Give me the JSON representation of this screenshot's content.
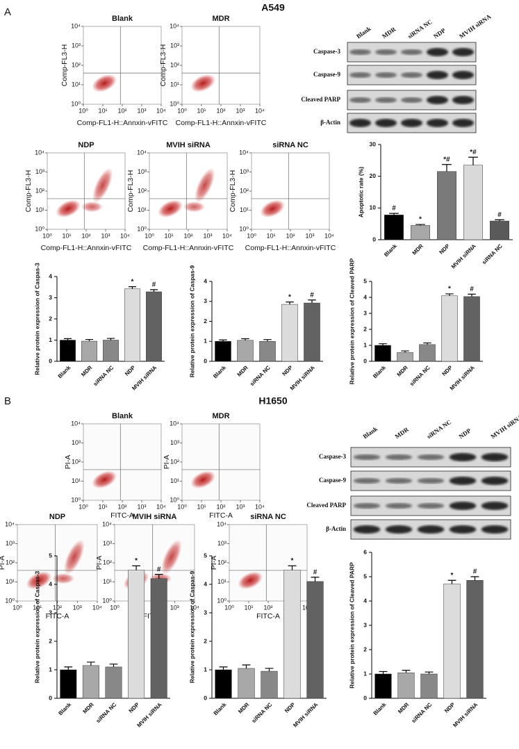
{
  "panels": [
    {
      "label": "A",
      "title": "A549",
      "flow_axes": {
        "xlim": [
          1,
          10000
        ],
        "ylim": [
          1,
          10000
        ],
        "log": true,
        "ticks": [
          {
            "value": 1,
            "label": "10⁰"
          },
          {
            "value": 10,
            "label": "10¹"
          },
          {
            "value": 100,
            "label": "10²"
          },
          {
            "value": 1000,
            "label": "10³"
          },
          {
            "value": 10000,
            "label": "10⁴"
          }
        ]
      },
      "flow": [
        {
          "title": "Blank",
          "xlabel": "Comp-FL1-H::Annxin-vFITC",
          "ylabel": "Comp-FL3-H"
        },
        {
          "title": "MDR",
          "xlabel": "Comp-FL1-H::Annxin-vFITC",
          "ylabel": "Comp-FL3-H"
        },
        {
          "title": "NDP",
          "xlabel": "Comp-FL1-H::Annxin-vFITC",
          "ylabel": "Comp-FL3-H"
        },
        {
          "title": "MVIH siRNA",
          "xlabel": "Comp-FL1-H::Annxin-vFITC",
          "ylabel": "Comp-FL3-H"
        },
        {
          "title": "siRNA NC",
          "xlabel": "Comp-FL1-H::Annxin-vFITC",
          "ylabel": "Comp-FL3-H"
        }
      ],
      "blot": {
        "lanes": [
          "Blank",
          "MDR",
          "siRNA NC",
          "NDP",
          "MVIH siRNA"
        ],
        "rows": [
          "Caspase-3",
          "Caspase-9",
          "Cleaved PARP",
          "β-Actin"
        ]
      }
    },
    {
      "label": "B",
      "title": "H1650",
      "flow_axes": {
        "xlim": [
          1,
          10000
        ],
        "ylim": [
          1,
          10000
        ],
        "log": true,
        "ticks": [
          {
            "value": 1,
            "label": "10⁰"
          },
          {
            "value": 10,
            "label": "10¹"
          },
          {
            "value": 100,
            "label": "10²"
          },
          {
            "value": 1000,
            "label": "10³"
          },
          {
            "value": 10000,
            "label": "10⁴"
          }
        ]
      },
      "flow": [
        {
          "title": "Blank",
          "xlabel": "FITC-A",
          "ylabel": "PI-A"
        },
        {
          "title": "MDR",
          "xlabel": "FITC-A",
          "ylabel": "PI-A"
        },
        {
          "title": "NDP",
          "xlabel": "FITC-A",
          "ylabel": "PI-A"
        },
        {
          "title": "MVIH siRNA",
          "xlabel": "FITC-A",
          "ylabel": "PI-A"
        },
        {
          "title": "siRNA NC",
          "xlabel": "FITC-A",
          "ylabel": "PI-A"
        }
      ],
      "blot": {
        "lanes": [
          "Blank",
          "MDR",
          "siRNA NC",
          "NDP",
          "MVIH siRNA"
        ],
        "rows": [
          "Caspase-3",
          "Caspase-9",
          "Cleaved PARP",
          "β-Actin"
        ]
      }
    }
  ],
  "chart_data": [
    {
      "type": "bar",
      "ylabel": "Apoptotic rate (%)",
      "categories": [
        "Blank",
        "MDR",
        "NDP",
        "MVIH siRNA",
        "siRNA NC"
      ],
      "values": [
        7.8,
        4.5,
        21.5,
        23.5,
        5.9
      ],
      "errors": [
        0.5,
        0.3,
        2.2,
        2.5,
        0.4
      ],
      "annotations": [
        "#",
        "*",
        "*#",
        "*#",
        "#"
      ],
      "colors": [
        "#000000",
        "#a8a8a8",
        "#7a7a7a",
        "#d9d9d9",
        "#5a5a5a"
      ],
      "ylim": [
        0,
        30
      ],
      "yticks": [
        0,
        10,
        20,
        30
      ]
    },
    {
      "type": "bar",
      "ylabel": "Relative protein expression of Caspas-3",
      "categories": [
        "Blank",
        "MDR",
        "siRNA NC",
        "NDP",
        "MVIH siRNA"
      ],
      "values": [
        1.0,
        0.95,
        1.0,
        3.42,
        3.28
      ],
      "errors": [
        0.07,
        0.08,
        0.08,
        0.1,
        0.1
      ],
      "annotations": [
        null,
        null,
        null,
        "*",
        "#"
      ],
      "colors": [
        "#000000",
        "#a8a8a8",
        "#888888",
        "#dcdcdc",
        "#626262"
      ],
      "ylim": [
        0,
        4
      ],
      "yticks": [
        0,
        1,
        2,
        3,
        4
      ]
    },
    {
      "type": "bar",
      "ylabel": "Relative protein expression of Caspas-9",
      "categories": [
        "Blank",
        "MDR",
        "siRNA NC",
        "NDP",
        "MVIH siRNA"
      ],
      "values": [
        1.0,
        1.05,
        1.0,
        2.85,
        2.92
      ],
      "errors": [
        0.07,
        0.08,
        0.09,
        0.12,
        0.15
      ],
      "annotations": [
        null,
        null,
        null,
        "*",
        "#"
      ],
      "colors": [
        "#000000",
        "#a8a8a8",
        "#888888",
        "#dcdcdc",
        "#626262"
      ],
      "ylim": [
        0,
        4
      ],
      "yticks": [
        0,
        1,
        2,
        3,
        4
      ]
    },
    {
      "type": "bar",
      "ylabel": "Relative protein expression of Cleaved PARP",
      "categories": [
        "Blank",
        "MDR",
        "siRNA NC",
        "NDP",
        "MVIH siRNA"
      ],
      "values": [
        1.0,
        0.55,
        1.05,
        4.1,
        4.05
      ],
      "errors": [
        0.1,
        0.1,
        0.1,
        0.12,
        0.15
      ],
      "annotations": [
        null,
        null,
        null,
        "*",
        "#"
      ],
      "colors": [
        "#000000",
        "#a8a8a8",
        "#888888",
        "#dcdcdc",
        "#626262"
      ],
      "ylim": [
        0,
        5
      ],
      "yticks": [
        0,
        1,
        2,
        3,
        4,
        5
      ]
    },
    {
      "type": "bar",
      "ylabel": "Relative protein expression of Caspas-3",
      "categories": [
        "Blank",
        "MDR",
        "siRNA NC",
        "NDP",
        "MVIH siRNA"
      ],
      "values": [
        1.0,
        1.15,
        1.1,
        4.5,
        4.2
      ],
      "errors": [
        0.1,
        0.12,
        0.1,
        0.15,
        0.15
      ],
      "annotations": [
        null,
        null,
        null,
        "*",
        "#"
      ],
      "colors": [
        "#000000",
        "#a8a8a8",
        "#888888",
        "#dcdcdc",
        "#626262"
      ],
      "ylim": [
        0,
        5
      ],
      "yticks": [
        0,
        1,
        2,
        3,
        4,
        5
      ]
    },
    {
      "type": "bar",
      "ylabel": "Relative protein expression of Caspas-9",
      "categories": [
        "Blank",
        "MDR",
        "siRNA NC",
        "NDP",
        "MVIH siRNA"
      ],
      "values": [
        1.0,
        1.05,
        0.95,
        4.5,
        4.1
      ],
      "errors": [
        0.1,
        0.12,
        0.1,
        0.15,
        0.15
      ],
      "annotations": [
        null,
        null,
        null,
        "*",
        "#"
      ],
      "colors": [
        "#000000",
        "#a8a8a8",
        "#888888",
        "#dcdcdc",
        "#626262"
      ],
      "ylim": [
        0,
        5
      ],
      "yticks": [
        0,
        1,
        2,
        3,
        4,
        5
      ]
    },
    {
      "type": "bar",
      "ylabel": "Relative protein expression of Cleaved PARP",
      "categories": [
        "Blank",
        "MDR",
        "siRNA NC",
        "NDP",
        "MVIH siRNA"
      ],
      "values": [
        1.0,
        1.05,
        1.0,
        4.7,
        4.85
      ],
      "errors": [
        0.1,
        0.1,
        0.08,
        0.15,
        0.15
      ],
      "annotations": [
        null,
        null,
        null,
        "*",
        "#"
      ],
      "colors": [
        "#000000",
        "#a8a8a8",
        "#888888",
        "#dcdcdc",
        "#626262"
      ],
      "ylim": [
        0,
        6
      ],
      "yticks": [
        0,
        1,
        2,
        3,
        4,
        5,
        6
      ]
    }
  ]
}
